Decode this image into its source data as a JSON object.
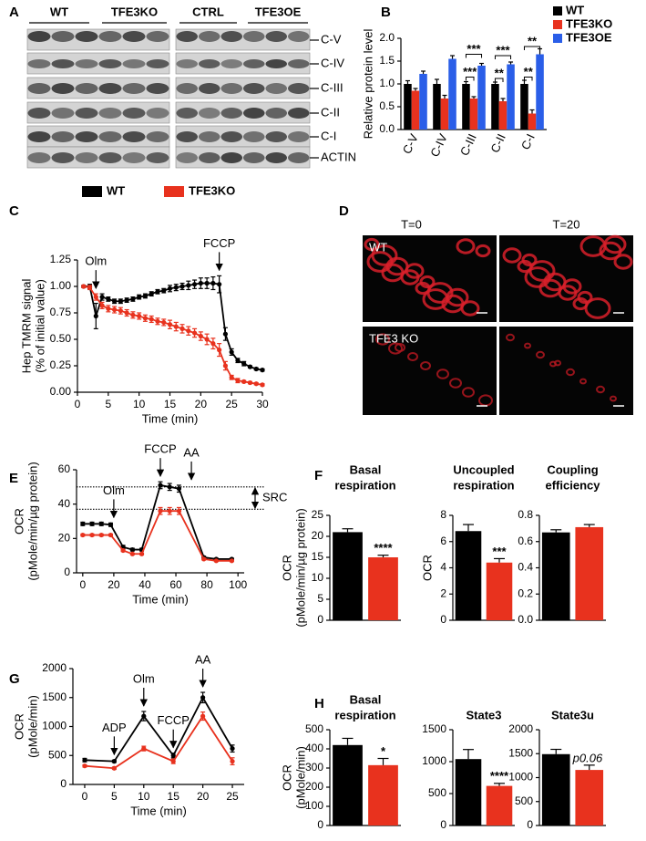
{
  "figure": {
    "blot": {
      "panel": "A",
      "groups": [
        "WT",
        "TFE3KO",
        "CTRL",
        "TFE3OE"
      ],
      "rows": [
        "C-V",
        "C-IV",
        "C-III",
        "C-II",
        "C-I",
        "ACTIN"
      ]
    },
    "micrographs": {
      "panel": "D",
      "columns": [
        "T=0",
        "T=20"
      ],
      "rows": [
        "WT",
        "TFE3 KO"
      ]
    }
  },
  "chart_data": [
    {
      "type": "grouped_bar",
      "panel": "B",
      "ylabel": [
        "Relative protein level"
      ],
      "categories": [
        "C-V",
        "C-IV",
        "C-III",
        "C-II",
        "C-I"
      ],
      "ylim": [
        0,
        2
      ],
      "yticks": [
        {
          "value": 0,
          "label": "0.0"
        },
        0.5,
        {
          "value": 1,
          "label": "1.0"
        },
        1.5,
        {
          "value": 2,
          "label": "2.0"
        }
      ],
      "series": [
        {
          "name": "WT",
          "color": "#000000",
          "values": [
            1.0,
            1.0,
            1.0,
            1.0,
            1.0
          ],
          "errors": [
            0.07,
            0.1,
            0.05,
            0.04,
            0.08
          ]
        },
        {
          "name": "TFE3KO",
          "color": "#e8321e",
          "values": [
            0.85,
            0.68,
            0.68,
            0.62,
            0.35
          ],
          "errors": [
            0.05,
            0.07,
            0.04,
            0.06,
            0.08
          ]
        },
        {
          "name": "TFE3OE",
          "color": "#2a5ee8",
          "values": [
            1.22,
            1.55,
            1.4,
            1.43,
            1.65
          ],
          "errors": [
            0.06,
            0.07,
            0.05,
            0.05,
            0.12
          ]
        }
      ],
      "significance": [
        "***",
        "***",
        "**",
        "***",
        "**",
        "**"
      ]
    },
    {
      "type": "line",
      "panel": "C",
      "ylabel": [
        "Hep TMRM signal",
        "(% of initial value)"
      ],
      "xlabel": "Time (min)",
      "x": [
        1,
        2,
        3,
        4,
        5,
        6,
        7,
        8,
        9,
        10,
        11,
        12,
        13,
        14,
        15,
        16,
        17,
        18,
        19,
        20,
        21,
        22,
        23,
        24,
        25,
        26,
        27,
        28,
        29,
        30
      ],
      "xlim": [
        0,
        30
      ],
      "xticks": [
        0,
        5,
        10,
        15,
        20,
        25,
        30
      ],
      "ylim": [
        0,
        1.25
      ],
      "yticks": [
        {
          "value": 0,
          "label": "0.00"
        },
        0.25,
        {
          "value": 0.5,
          "label": "0.50"
        },
        0.75,
        {
          "value": 1,
          "label": "1.00"
        },
        1.25
      ],
      "arrows": [
        {
          "x": 3,
          "label": "Olm"
        },
        {
          "x": 23,
          "label": "FCCP"
        }
      ],
      "series": [
        {
          "name": "WT",
          "color": "#000000",
          "values": [
            1.0,
            1.0,
            0.72,
            0.9,
            0.88,
            0.86,
            0.86,
            0.87,
            0.88,
            0.9,
            0.91,
            0.93,
            0.95,
            0.96,
            0.98,
            0.99,
            1.0,
            1.01,
            1.02,
            1.03,
            1.03,
            1.03,
            1.02,
            0.55,
            0.38,
            0.3,
            0.27,
            0.24,
            0.22,
            0.21
          ],
          "errors": [
            0.01,
            0.02,
            0.12,
            0.03,
            0.02,
            0.02,
            0.02,
            0.02,
            0.02,
            0.02,
            0.02,
            0.02,
            0.02,
            0.02,
            0.03,
            0.03,
            0.03,
            0.04,
            0.04,
            0.05,
            0.05,
            0.06,
            0.08,
            0.06,
            0.03,
            0.02,
            0.02,
            0.01,
            0.01,
            0.01
          ]
        },
        {
          "name": "TFE3KO",
          "color": "#e8321e",
          "values": [
            1.0,
            0.99,
            0.9,
            0.82,
            0.79,
            0.78,
            0.77,
            0.75,
            0.73,
            0.72,
            0.7,
            0.69,
            0.67,
            0.66,
            0.64,
            0.62,
            0.6,
            0.58,
            0.56,
            0.53,
            0.5,
            0.46,
            0.4,
            0.25,
            0.14,
            0.11,
            0.1,
            0.09,
            0.08,
            0.07
          ],
          "errors": [
            0.01,
            0.02,
            0.03,
            0.03,
            0.03,
            0.03,
            0.03,
            0.03,
            0.03,
            0.03,
            0.03,
            0.03,
            0.03,
            0.03,
            0.04,
            0.04,
            0.04,
            0.04,
            0.04,
            0.04,
            0.05,
            0.05,
            0.06,
            0.04,
            0.02,
            0.02,
            0.01,
            0.01,
            0.01,
            0.01
          ]
        }
      ]
    },
    {
      "type": "line",
      "panel": "E",
      "ylabel": [
        "OCR",
        "(pMole/min/µg protein)"
      ],
      "xlabel": "Time (min)",
      "x": [
        0,
        6,
        12,
        18,
        26,
        32,
        38,
        50,
        56,
        62,
        78,
        86,
        96
      ],
      "xlim": [
        -4,
        104
      ],
      "xticks": [
        0,
        20,
        40,
        60,
        80,
        100
      ],
      "ylim": [
        0,
        60
      ],
      "yticks": [
        0,
        20,
        40,
        60
      ],
      "arrows": [
        {
          "x": 20,
          "label": "Olm"
        },
        {
          "x": 50,
          "label": "FCCP"
        },
        {
          "x": 70,
          "label": "AA"
        }
      ],
      "ref_lines": [
        50,
        37
      ],
      "ref_label": "SRC",
      "series": [
        {
          "name": "WT",
          "color": "#000000",
          "values": [
            28.5,
            28.5,
            28.5,
            28,
            15,
            13.5,
            13.5,
            51,
            50,
            49,
            9,
            8,
            8
          ],
          "errors": [
            1,
            1,
            1,
            1,
            1,
            0.8,
            0.8,
            2,
            2,
            2,
            0.6,
            0.5,
            0.5
          ]
        },
        {
          "name": "TFE3KO",
          "color": "#e8321e",
          "values": [
            22,
            22,
            22,
            22,
            13,
            11,
            11,
            36,
            36,
            36,
            8,
            7,
            7
          ],
          "errors": [
            0.6,
            0.6,
            0.6,
            0.6,
            0.6,
            0.5,
            0.5,
            2,
            2,
            2,
            0.5,
            0.4,
            0.4
          ]
        }
      ]
    },
    {
      "type": "bar",
      "panel": "F",
      "title": [
        "Basal",
        "respiration"
      ],
      "ylabel": [
        "OCR",
        "(pMole/min/µg protein)"
      ],
      "categories": [
        null,
        null
      ],
      "values": [
        21,
        15
      ],
      "errors": [
        0.8,
        0.5
      ],
      "colors": [
        "#000000",
        "#e8321e"
      ],
      "ylim": [
        0,
        25
      ],
      "yticks": [
        0,
        5,
        10,
        15,
        20,
        25
      ],
      "significance": "****"
    },
    {
      "type": "bar",
      "title": [
        "Uncoupled",
        "respiration"
      ],
      "ylabel": [
        "OCR"
      ],
      "categories": [
        null,
        null
      ],
      "values": [
        6.8,
        4.4
      ],
      "errors": [
        0.5,
        0.3
      ],
      "colors": [
        "#000000",
        "#e8321e"
      ],
      "ylim": [
        0,
        8
      ],
      "yticks": [
        0,
        2,
        4,
        6,
        8
      ],
      "significance": "***"
    },
    {
      "type": "bar",
      "title": [
        "Coupling",
        "efficiency"
      ],
      "categories": [
        null,
        null
      ],
      "values": [
        0.67,
        0.71
      ],
      "errors": [
        0.02,
        0.02
      ],
      "colors": [
        "#000000",
        "#e8321e"
      ],
      "ylim": [
        0,
        0.8
      ],
      "yticks": [
        {
          "value": 0,
          "label": "0.0"
        },
        0.2,
        0.4,
        0.6,
        0.8
      ]
    },
    {
      "type": "line",
      "panel": "G",
      "ylabel": [
        "OCR",
        "(pMole/min)"
      ],
      "xlabel": "Time (min)",
      "x": [
        0,
        5,
        10,
        15,
        20,
        25
      ],
      "xlim": [
        -2,
        27
      ],
      "xticks": [
        0,
        5,
        10,
        15,
        20,
        25
      ],
      "ylim": [
        0,
        2000
      ],
      "yticks": [
        0,
        500,
        1000,
        1500,
        2000
      ],
      "arrows": [
        {
          "x": 5,
          "label": "ADP"
        },
        {
          "x": 10,
          "label": "Olm"
        },
        {
          "x": 15,
          "label": "FCCP"
        },
        {
          "x": 20,
          "label": "AA"
        }
      ],
      "series": [
        {
          "name": "WT",
          "color": "#000000",
          "values": [
            420,
            400,
            1180,
            500,
            1500,
            620
          ],
          "errors": [
            30,
            20,
            80,
            40,
            90,
            60
          ]
        },
        {
          "name": "TFE3KO",
          "color": "#e8321e",
          "values": [
            320,
            280,
            620,
            400,
            1180,
            400
          ],
          "errors": [
            20,
            20,
            40,
            40,
            70,
            60
          ]
        }
      ]
    },
    {
      "type": "bar",
      "panel": "H",
      "title": [
        "Basal",
        "respiration"
      ],
      "ylabel": [
        "OCR",
        "(pMole/min)"
      ],
      "categories": [
        null,
        null
      ],
      "values": [
        420,
        315
      ],
      "errors": [
        35,
        35
      ],
      "colors": [
        "#000000",
        "#e8321e"
      ],
      "ylim": [
        0,
        500
      ],
      "yticks": [
        0,
        100,
        200,
        300,
        400,
        500
      ],
      "significance": "*"
    },
    {
      "type": "bar",
      "title": [
        "State3"
      ],
      "categories": [
        null,
        null
      ],
      "values": [
        1040,
        620
      ],
      "errors": [
        150,
        40
      ],
      "colors": [
        "#000000",
        "#e8321e"
      ],
      "ylim": [
        0,
        1500
      ],
      "yticks": [
        0,
        500,
        1000,
        1500
      ],
      "significance": "****"
    },
    {
      "type": "bar",
      "title": [
        "State3u"
      ],
      "categories": [
        null,
        null
      ],
      "values": [
        1490,
        1160
      ],
      "errors": [
        100,
        100
      ],
      "colors": [
        "#000000",
        "#e8321e"
      ],
      "ylim": [
        0,
        2000
      ],
      "yticks": [
        0,
        500,
        1000,
        1500,
        2000
      ],
      "note": "p0.06"
    }
  ]
}
